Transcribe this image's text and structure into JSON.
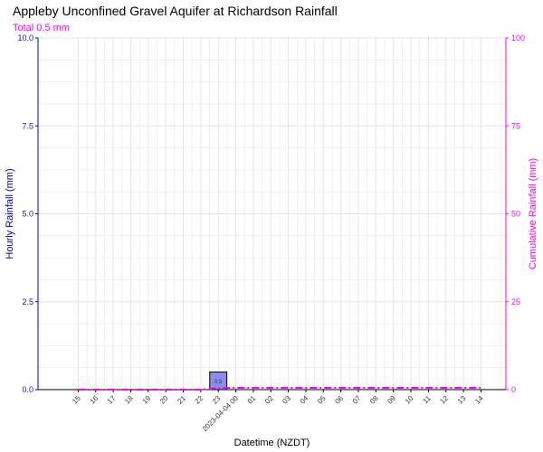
{
  "chart_data": {
    "type": "bar",
    "title": "Appleby Unconfined Gravel Aquifer at Richardson Rainfall",
    "subtitle": "Total 0.5 mm",
    "xlabel": "Datetime (NZDT)",
    "ylabel": "Hourly Rainfall (mm)",
    "y2label": "Cumulative Rainfall (mm)",
    "ylim": [
      0,
      10
    ],
    "y2lim": [
      0,
      100
    ],
    "yticks": [
      "0.0",
      "2.5",
      "5.0",
      "7.5",
      "10.0"
    ],
    "y2ticks": [
      "0",
      "25",
      "50",
      "75",
      "100"
    ],
    "categories": [
      "15",
      "16",
      "17",
      "18",
      "19",
      "20",
      "21",
      "22",
      "23",
      "2023-04-04 00",
      "01",
      "02",
      "03",
      "04",
      "05",
      "06",
      "07",
      "08",
      "09",
      "10",
      "11",
      "12",
      "13",
      "14"
    ],
    "series": [
      {
        "kind": "bar",
        "axis": "left",
        "values": [
          0,
          0,
          0,
          0,
          0,
          0,
          0,
          0,
          0.5,
          0,
          0,
          0,
          0,
          0,
          0,
          0,
          0,
          0,
          0,
          0,
          0,
          0,
          0,
          0
        ],
        "labels": [
          "",
          "",
          "",
          "",
          "",
          "",
          "",
          "",
          "0.5",
          "",
          "",
          "",
          "",
          "",
          "",
          "",
          "",
          "",
          "",
          "",
          "",
          "",
          "",
          ""
        ]
      },
      {
        "kind": "line",
        "axis": "right",
        "style": "dash-dot",
        "values": [
          0,
          0,
          0,
          0,
          0,
          0,
          0,
          0,
          0.5,
          0.5,
          0.5,
          0.5,
          0.5,
          0.5,
          0.5,
          0.5,
          0.5,
          0.5,
          0.5,
          0.5,
          0.5,
          0.5,
          0.5,
          0.5
        ]
      }
    ],
    "grid": true,
    "colors": {
      "left_axis": "#0000cc",
      "right_axis": "#ff00ff",
      "bar_fill": "#8c8cf0",
      "bar_stroke": "#000000",
      "cumulative_line": "#ff00ff",
      "grid": "#e6e6e6"
    }
  }
}
